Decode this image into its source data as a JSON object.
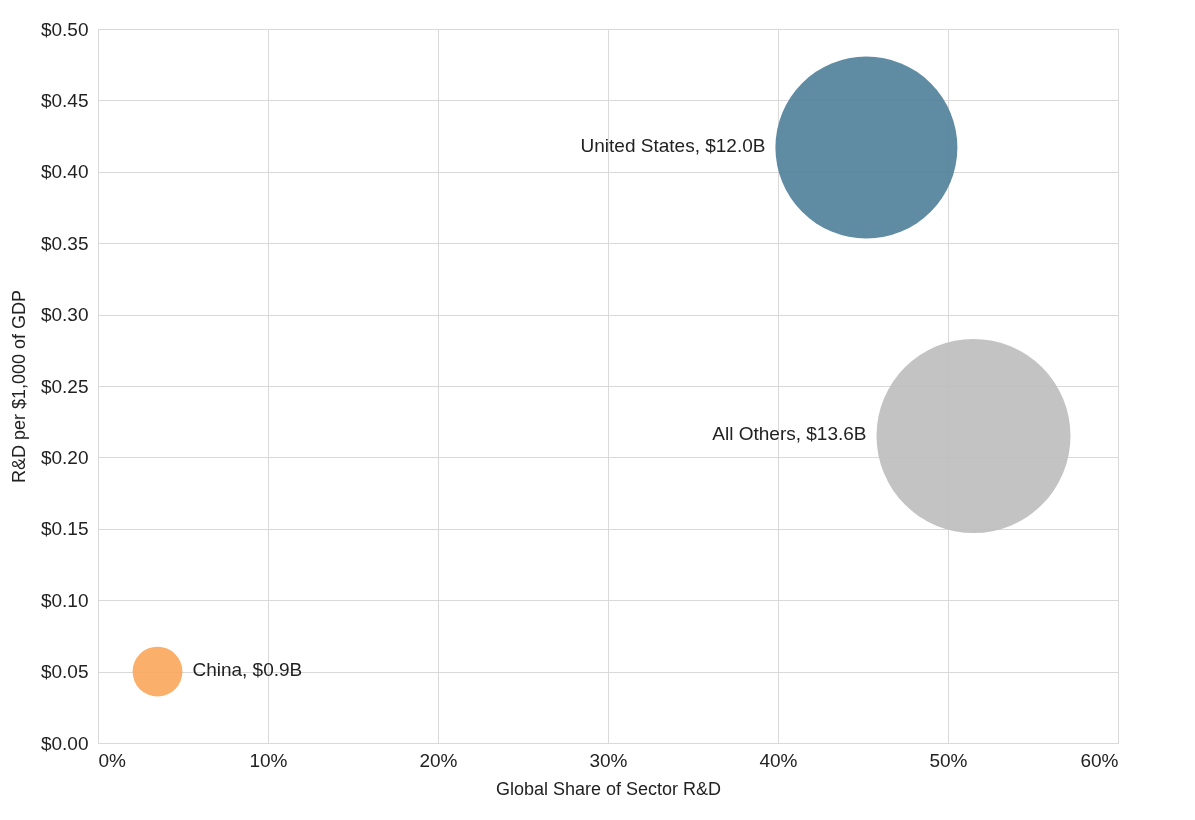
{
  "chart_data": {
    "type": "bubble",
    "xlabel": "Global Share of Sector R&D",
    "ylabel": "R&D per $1,000 of GDP",
    "x": [
      3.5,
      45.2,
      51.5
    ],
    "values": [
      0.05,
      0.417,
      0.215
    ],
    "sizes": [
      0.066,
      0.88,
      1
    ],
    "colors": [
      "#f9a65a",
      "#4e7f99",
      "#bdbdbd"
    ],
    "annotations": [
      "China, $0.9B",
      "United States, $12.0B",
      "All Others, $13.6B"
    ],
    "xlim": [
      0,
      60
    ],
    "xticks": [
      {
        "value": 0,
        "label": "0%"
      },
      {
        "value": 10,
        "label": "10%"
      },
      {
        "value": 20,
        "label": "20%"
      },
      {
        "value": 30,
        "label": "30%"
      },
      {
        "value": 40,
        "label": "40%"
      },
      {
        "value": 50,
        "label": "50%"
      },
      {
        "value": 60,
        "label": "60%"
      }
    ],
    "ylim": [
      0,
      0.5
    ],
    "yticks": [
      {
        "value": 0,
        "label": "$0.00"
      },
      {
        "value": 0.05,
        "label": "$0.05"
      },
      {
        "value": 0.1,
        "label": "$0.10"
      },
      {
        "value": 0.15,
        "label": "$0.15"
      },
      {
        "value": 0.2,
        "label": "$0.20"
      },
      {
        "value": 0.25,
        "label": "$0.25"
      },
      {
        "value": 0.3,
        "label": "$0.30"
      },
      {
        "value": 0.35,
        "label": "$0.35"
      },
      {
        "value": 0.4,
        "label": "$0.40"
      },
      {
        "value": 0.45,
        "label": "$0.45"
      },
      {
        "value": 0.5,
        "label": "$0.50"
      }
    ],
    "grid": true
  }
}
